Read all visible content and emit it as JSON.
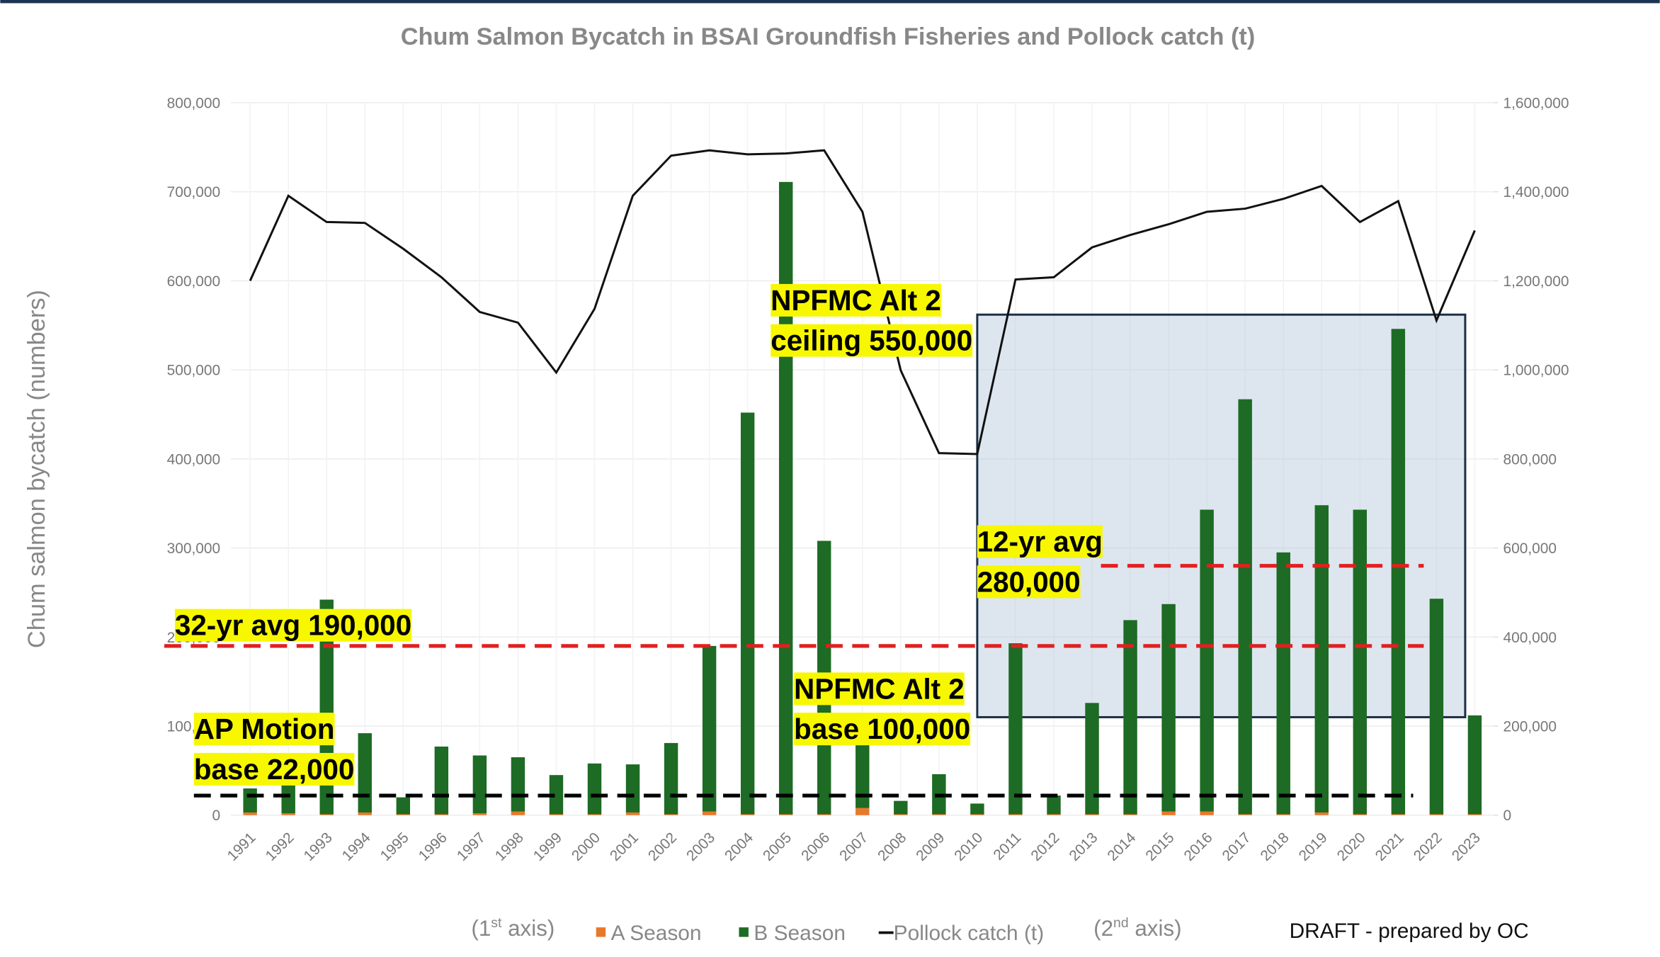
{
  "chart_data": {
    "type": "bar",
    "title": "Chum Salmon Bycatch in BSAI Groundfish Fisheries and Pollock catch (t)",
    "y_label": "Chum salmon bycatch (numbers)",
    "categories": [
      "1991",
      "1992",
      "1993",
      "1994",
      "1995",
      "1996",
      "1997",
      "1998",
      "1999",
      "2000",
      "2001",
      "2002",
      "2003",
      "2004",
      "2005",
      "2006",
      "2007",
      "2008",
      "2009",
      "2010",
      "2011",
      "2012",
      "2013",
      "2014",
      "2015",
      "2016",
      "2017",
      "2018",
      "2019",
      "2020",
      "2021",
      "2022",
      "2023"
    ],
    "series": [
      {
        "name": "A Season",
        "color": "#e8792b",
        "values": [
          3000,
          2000,
          1000,
          3000,
          1000,
          1000,
          2000,
          4000,
          1000,
          1000,
          3000,
          1000,
          4000,
          1000,
          1000,
          1000,
          8000,
          1000,
          1000,
          1000,
          1000,
          1000,
          1000,
          1000,
          4000,
          4000,
          1000,
          1000,
          3000,
          1000,
          1000,
          1000,
          1000
        ]
      },
      {
        "name": "B Season",
        "color": "#1d6b24",
        "values": [
          27000,
          38000,
          241000,
          89000,
          19000,
          76000,
          65000,
          61000,
          44000,
          57000,
          54000,
          80000,
          186000,
          451000,
          710000,
          307000,
          86000,
          15000,
          45000,
          12000,
          192000,
          21000,
          125000,
          218000,
          233000,
          339000,
          466000,
          294000,
          345000,
          342000,
          545000,
          242000,
          111000
        ]
      },
      {
        "name": "Pollock catch (t)",
        "color": "#111111",
        "axis": "y2",
        "values": [
          1200000,
          1391000,
          1332000,
          1330000,
          1272000,
          1208000,
          1130000,
          1106000,
          994000,
          1137000,
          1391000,
          1481000,
          1493000,
          1484000,
          1486000,
          1493000,
          1355000,
          999000,
          813000,
          811000,
          1203000,
          1208000,
          1275000,
          1303000,
          1327000,
          1355000,
          1362000,
          1384000,
          1413000,
          1332000,
          1379000,
          1111000,
          1313000
        ]
      }
    ],
    "ylim": [
      0,
      800000
    ],
    "yticks": [
      0,
      {
        "value": 100000,
        "label": "100,000"
      },
      {
        "value": 200000,
        "label": "200,000"
      },
      {
        "value": 300000,
        "label": "300,000"
      },
      {
        "value": 400000,
        "label": "400,000"
      },
      {
        "value": 500000,
        "label": "500,000"
      },
      {
        "value": 600000,
        "label": "600,000"
      },
      {
        "value": 700000,
        "label": "700,000"
      },
      {
        "value": 800000,
        "label": "800,000"
      }
    ],
    "y2lim": [
      0,
      1600000
    ],
    "y2ticks": [
      0,
      {
        "value": 200000,
        "label": "200,000"
      },
      {
        "value": 400000,
        "label": "400,000"
      },
      {
        "value": 600000,
        "label": "600,000"
      },
      {
        "value": 800000,
        "label": "800,000"
      },
      {
        "value": 1000000,
        "label": "1,000,000"
      },
      {
        "value": 1200000,
        "label": "1,200,000"
      },
      {
        "value": 1400000,
        "label": "1,400,000"
      },
      {
        "value": 1600000,
        "label": "1,600,000"
      }
    ],
    "grid": true,
    "reference_lines": [
      {
        "value": 190000,
        "color": "#e02020"
      },
      {
        "value": 280000,
        "color": "#e02020"
      },
      {
        "value": 22000,
        "color": "#000000"
      }
    ],
    "shaded_box": {
      "low": 110000,
      "high": 562000,
      "from": "2010",
      "to": "2022"
    },
    "annotations": [
      {
        "lines": [
          "NPFMC Alt 2",
          "ceiling 550,000"
        ]
      },
      {
        "lines": [
          "12-yr avg",
          "280,000"
        ]
      },
      {
        "lines": [
          "32-yr avg 190,000"
        ]
      },
      {
        "lines": [
          "NPFMC Alt 2",
          "base 100,000"
        ]
      },
      {
        "lines": [
          "AP Motion",
          "base 22,000"
        ]
      }
    ],
    "axis_notes": [
      {
        "pre": "(1",
        "sup": "st",
        "post": " axis)"
      },
      {
        "pre": "(2",
        "sup": "nd",
        "post": " axis)"
      }
    ],
    "footer": "DRAFT - prepared by OC"
  }
}
